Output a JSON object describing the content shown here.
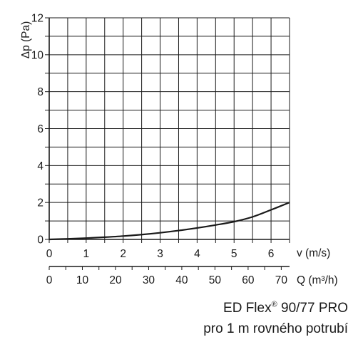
{
  "chart_data": {
    "type": "line",
    "ylabel": "Δp (Pa)",
    "xlabel": "v (m/s)",
    "xlabel2": "Q (m³/h)",
    "y_ticks": [
      "0",
      "2",
      "4",
      "6",
      "8",
      "10",
      "12"
    ],
    "x_ticks": [
      "0",
      "1",
      "2",
      "3",
      "4",
      "5",
      "6"
    ],
    "x2_ticks": [
      "0",
      "10",
      "20",
      "30",
      "40",
      "50",
      "60",
      "70"
    ],
    "xlim": [
      0,
      6.5
    ],
    "ylim": [
      0,
      12
    ],
    "x2lim": [
      0,
      72.5
    ],
    "grid": true,
    "series": [
      {
        "x": [
          0,
          0.5,
          1,
          1.5,
          2,
          2.5,
          3,
          3.5,
          4,
          4.5,
          5,
          5.5,
          6,
          6.5
        ],
        "y": [
          0,
          0.03,
          0.07,
          0.12,
          0.18,
          0.26,
          0.36,
          0.48,
          0.62,
          0.78,
          0.96,
          1.22,
          1.6,
          2.0
        ]
      }
    ],
    "line_color": "#1a1a1a",
    "grid_color": "#1a1a1a"
  },
  "caption": {
    "line1_main": "ED Flex",
    "line1_reg": "®",
    "line1_rest": " 90/77 PRO",
    "line2": "pro 1 m rovného potrubí"
  }
}
